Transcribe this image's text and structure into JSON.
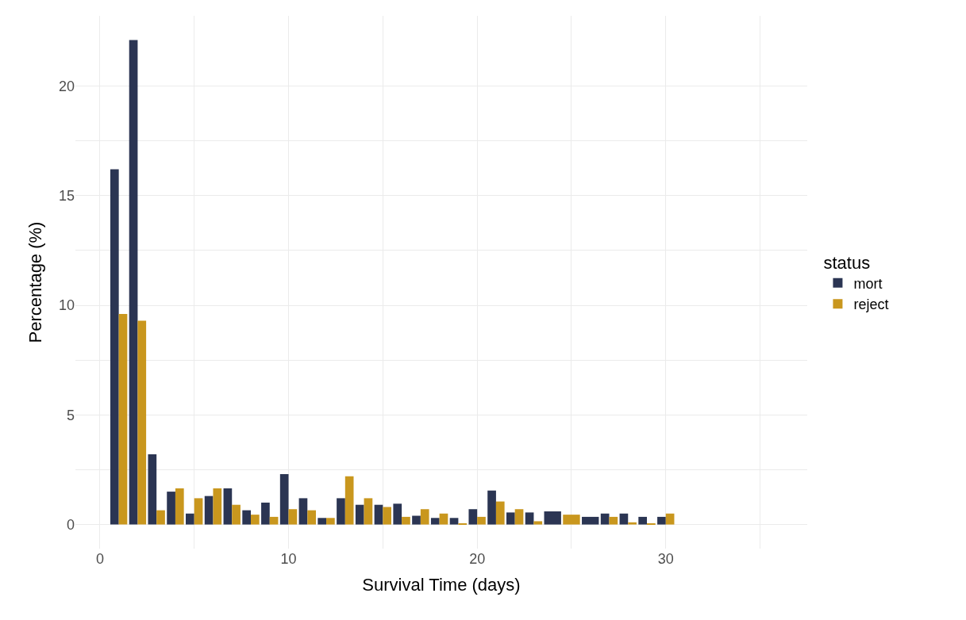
{
  "chart_data": {
    "type": "bar",
    "xlabel": "Survival Time (days)",
    "ylabel": "Percentage (%)",
    "legend_title": "status",
    "x": [
      1,
      2,
      3,
      4,
      5,
      6,
      7,
      8,
      9,
      10,
      11,
      12,
      13,
      14,
      15,
      16,
      17,
      18,
      19,
      20,
      21,
      22,
      23,
      24,
      25,
      26,
      27,
      28,
      29,
      30
    ],
    "series": [
      {
        "name": "mort",
        "color": "#2b3553",
        "values": [
          16.2,
          22.1,
          3.2,
          1.5,
          0.5,
          1.3,
          1.65,
          0.65,
          1.0,
          2.3,
          1.2,
          0.3,
          1.2,
          0.9,
          0.9,
          0.95,
          0.4,
          0.3,
          0.3,
          0.7,
          1.55,
          0.55,
          0.55,
          0.6,
          null,
          0.35,
          0.5,
          0.5,
          0.35,
          0.35
        ]
      },
      {
        "name": "reject",
        "color": "#c9971e",
        "values": [
          9.6,
          9.3,
          0.65,
          1.65,
          1.2,
          1.65,
          0.9,
          0.45,
          0.35,
          0.7,
          0.65,
          0.3,
          2.2,
          1.2,
          0.8,
          0.35,
          0.7,
          0.5,
          0.05,
          0.35,
          1.05,
          0.7,
          0.15,
          null,
          0.45,
          null,
          0.35,
          0.1,
          0.05,
          0.5
        ]
      }
    ],
    "xlim": [
      -1.3,
      37.5
    ],
    "xticks": [
      0,
      {
        "value": 5,
        "label": null
      },
      10,
      {
        "value": 15,
        "label": null
      },
      20,
      {
        "value": 25,
        "label": null
      },
      30,
      {
        "value": 35,
        "label": null
      }
    ],
    "ylim": [
      -1.1,
      23.2
    ],
    "yticks": [
      0,
      {
        "value": 2.5,
        "label": null
      },
      5,
      {
        "value": 7.5,
        "label": null
      },
      10,
      {
        "value": 12.5,
        "label": null
      },
      15,
      {
        "value": 17.5,
        "label": null
      },
      20
    ],
    "grid": true,
    "legend": "right"
  }
}
